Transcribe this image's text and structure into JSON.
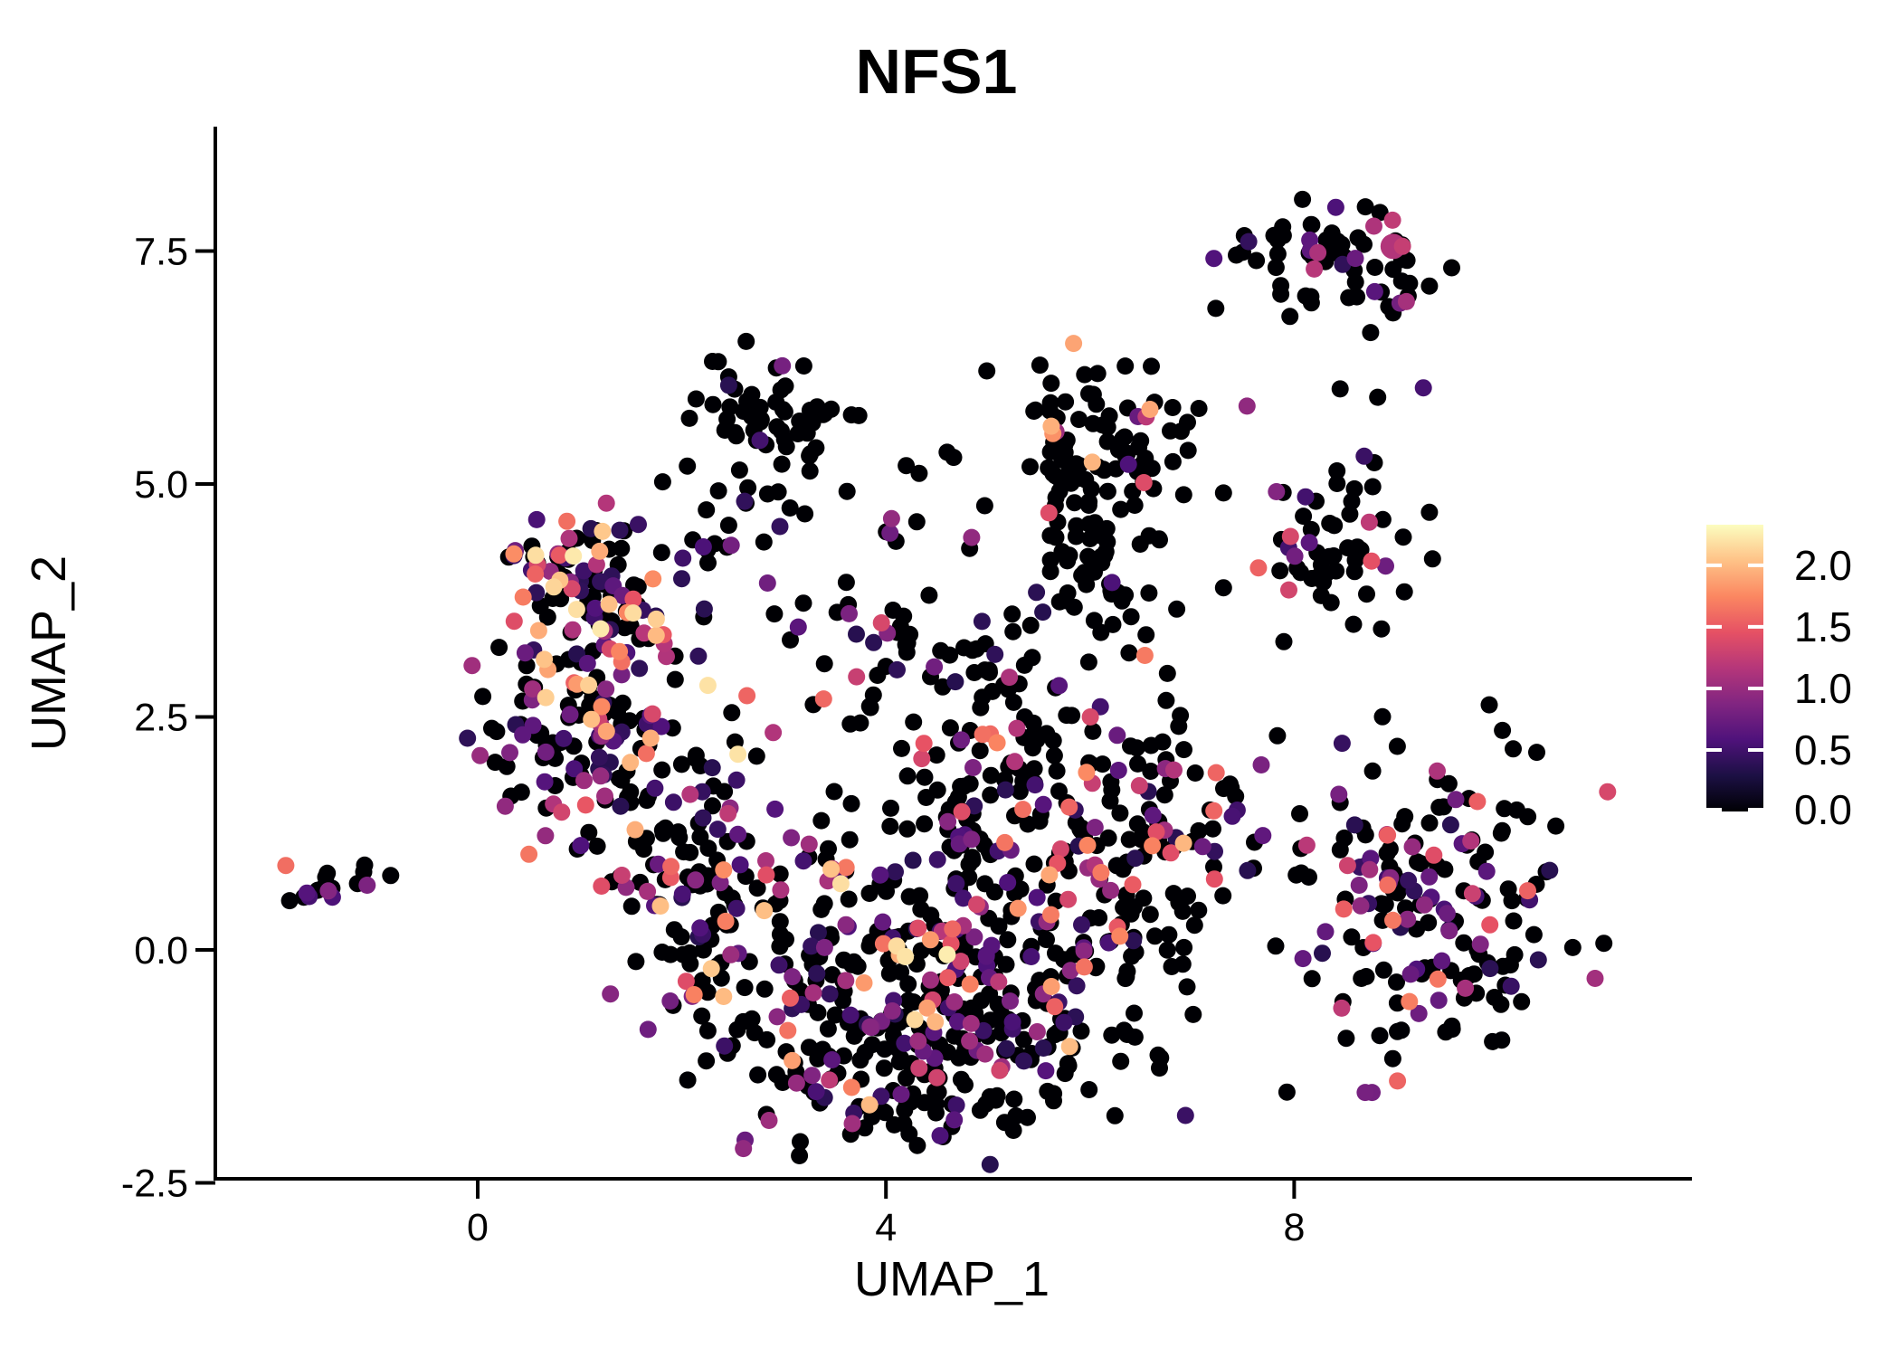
{
  "figure": {
    "background": "#FFFFFF",
    "text_color": "#000000"
  },
  "chart_data": {
    "type": "scatter",
    "title": "NFS1",
    "xlabel": "UMAP_1",
    "ylabel": "UMAP_2",
    "xlim": [
      -2.6,
      11.9
    ],
    "ylim": [
      -2.45,
      8.6
    ],
    "grid": false,
    "xticks": {
      "values": [
        0,
        4,
        8
      ],
      "labels": [
        "0",
        "4",
        "8"
      ]
    },
    "yticks": {
      "values": [
        -2.5,
        0.0,
        2.5,
        5.0,
        7.5
      ],
      "labels": [
        "-2.5",
        "0.0",
        "2.5",
        "5.0",
        "7.5"
      ]
    },
    "point_radius": 9.5,
    "points_seed": 7,
    "colorbar": {
      "title": "",
      "position": "right",
      "vmin": 0.0,
      "vmax": 2.33,
      "tick_values": [
        2.0,
        1.5,
        1.0,
        0.5,
        0.0
      ],
      "tick_labels": [
        "2.0",
        "1.5",
        "1.0",
        "0.5",
        "0.0"
      ],
      "palette_name": "magma",
      "palette_stops": [
        "#000004",
        "#1C1044",
        "#4F127B",
        "#812581",
        "#B5367A",
        "#E65164",
        "#FB8761",
        "#FEC287",
        "#FCFDBF"
      ]
    },
    "clusters": [
      {
        "name": "far-left-core",
        "n": 13,
        "cx": -1.62,
        "cy": 0.72,
        "sx": 0.17,
        "sy": 0.12,
        "frac": 0.4,
        "vmin": 0.5,
        "vmax": 1.8,
        "bias": 1.2
      },
      {
        "name": "far-left-pair",
        "n": 3,
        "cx": -1.12,
        "cy": 0.85,
        "sx": 0.08,
        "sy": 0.06,
        "frac": 0.35,
        "vmin": 0.6,
        "vmax": 1.0,
        "bias": 1.5
      },
      {
        "name": "far-left-single",
        "n": 1,
        "cx": -0.82,
        "cy": 0.82,
        "sx": 0.04,
        "sy": 0.03,
        "frac": 0.0,
        "vmin": 0.35,
        "vmax": 1.0,
        "bias": 1.6
      },
      {
        "name": "upper-left-top",
        "n": 95,
        "cx": 1.05,
        "cy": 4.0,
        "sx": 0.45,
        "sy": 0.4,
        "frac": 0.55,
        "vmin": 0.35,
        "vmax": 2.25,
        "bias": 1.5
      },
      {
        "name": "upper-left-mid",
        "n": 85,
        "cx": 1.2,
        "cy": 2.95,
        "sx": 0.5,
        "sy": 0.5,
        "frac": 0.5,
        "vmin": 0.35,
        "vmax": 2.25,
        "bias": 1.5
      },
      {
        "name": "upper-left-low",
        "n": 60,
        "cx": 0.85,
        "cy": 1.95,
        "sx": 0.45,
        "sy": 0.42,
        "frac": 0.45,
        "vmin": 0.35,
        "vmax": 2.0,
        "bias": 1.6
      },
      {
        "name": "left-bridge",
        "n": 50,
        "cx": 1.95,
        "cy": 1.2,
        "sx": 0.42,
        "sy": 0.55,
        "frac": 0.45,
        "vmin": 0.35,
        "vmax": 2.0,
        "bias": 1.6
      },
      {
        "name": "top-center-black",
        "n": 55,
        "cx": 2.85,
        "cy": 5.75,
        "sx": 0.34,
        "sy": 0.3,
        "frac": 0.03,
        "vmin": 0.35,
        "vmax": 1.0,
        "bias": 1.6
      },
      {
        "name": "top-center-trail",
        "n": 14,
        "cx": 2.75,
        "cy": 4.95,
        "sx": 0.55,
        "sy": 0.22,
        "frac": 0.08,
        "vmin": 0.35,
        "vmax": 1.0,
        "bias": 1.6
      },
      {
        "name": "mid-band-pairs",
        "n": 8,
        "cx": 2.3,
        "cy": 4.45,
        "sx": 0.3,
        "sy": 0.15,
        "frac": 0.4,
        "vmin": 0.4,
        "vmax": 1.2,
        "bias": 1.5
      },
      {
        "name": "purple-trio",
        "n": 6,
        "cx": 4.35,
        "cy": 4.5,
        "sx": 0.22,
        "sy": 0.12,
        "frac": 0.7,
        "vmin": 0.6,
        "vmax": 1.3,
        "bias": 1.2
      },
      {
        "name": "sparse-five-line",
        "n": 4,
        "cx": 4.25,
        "cy": 5.2,
        "sx": 0.35,
        "sy": 0.08,
        "frac": 0.0,
        "vmin": 0.35,
        "vmax": 1.0,
        "bias": 1.6
      },
      {
        "name": "mid-top-cluster",
        "n": 75,
        "cx": 6.1,
        "cy": 5.5,
        "sx": 0.45,
        "sy": 0.4,
        "frac": 0.06,
        "vmin": 0.5,
        "vmax": 2.0,
        "bias": 0.8
      },
      {
        "name": "mid-black-cluster",
        "n": 60,
        "cx": 6.15,
        "cy": 4.3,
        "sx": 0.35,
        "sy": 0.55,
        "frac": 0.08,
        "vmin": 0.35,
        "vmax": 1.5,
        "bias": 1.4
      },
      {
        "name": "mid-bridge",
        "n": 30,
        "cx": 5.3,
        "cy": 3.0,
        "sx": 0.5,
        "sy": 0.4,
        "frac": 0.15,
        "vmin": 0.35,
        "vmax": 1.4,
        "bias": 1.5
      },
      {
        "name": "center-bridge",
        "n": 45,
        "cx": 4.0,
        "cy": 3.15,
        "sx": 0.8,
        "sy": 0.55,
        "frac": 0.3,
        "vmin": 0.35,
        "vmax": 1.6,
        "bias": 1.5
      },
      {
        "name": "top-right",
        "n": 70,
        "cx": 8.35,
        "cy": 7.5,
        "sx": 0.5,
        "sy": 0.27,
        "frac": 0.18,
        "vmin": 0.4,
        "vmax": 1.6,
        "bias": 1.4
      },
      {
        "name": "top-right-tail",
        "n": 5,
        "cx": 8.85,
        "cy": 6.95,
        "sx": 0.15,
        "sy": 0.15,
        "frac": 0.5,
        "vmin": 0.6,
        "vmax": 1.3,
        "bias": 1.2
      },
      {
        "name": "top-right-sparse",
        "n": 4,
        "cx": 8.6,
        "cy": 5.95,
        "sx": 0.5,
        "sy": 0.12,
        "frac": 0.15,
        "vmin": 0.35,
        "vmax": 1.0,
        "bias": 1.6
      },
      {
        "name": "right-mid",
        "n": 55,
        "cx": 8.4,
        "cy": 4.4,
        "sx": 0.42,
        "sy": 0.42,
        "frac": 0.22,
        "vmin": 0.35,
        "vmax": 1.6,
        "bias": 1.5
      },
      {
        "name": "bottom-right",
        "n": 185,
        "cx": 9.35,
        "cy": 0.55,
        "sx": 0.72,
        "sy": 0.8,
        "frac": 0.3,
        "vmin": 0.35,
        "vmax": 1.7,
        "bias": 1.6
      },
      {
        "name": "central-1",
        "n": 110,
        "cx": 2.5,
        "cy": 0.4,
        "sx": 0.55,
        "sy": 0.85,
        "frac": 0.38,
        "vmin": 0.35,
        "vmax": 2.2,
        "bias": 1.7
      },
      {
        "name": "central-2",
        "n": 115,
        "cx": 3.6,
        "cy": -0.6,
        "sx": 0.7,
        "sy": 0.7,
        "frac": 0.33,
        "vmin": 0.35,
        "vmax": 2.2,
        "bias": 1.7
      },
      {
        "name": "central-3",
        "n": 125,
        "cx": 5.0,
        "cy": -0.9,
        "sx": 0.75,
        "sy": 0.55,
        "frac": 0.33,
        "vmin": 0.35,
        "vmax": 2.2,
        "bias": 1.7
      },
      {
        "name": "central-4",
        "n": 105,
        "cx": 4.5,
        "cy": 0.6,
        "sx": 0.75,
        "sy": 0.7,
        "frac": 0.35,
        "vmin": 0.35,
        "vmax": 2.2,
        "bias": 1.7
      },
      {
        "name": "central-5",
        "n": 105,
        "cx": 6.0,
        "cy": 0.3,
        "sx": 0.65,
        "sy": 0.8,
        "frac": 0.3,
        "vmin": 0.35,
        "vmax": 2.0,
        "bias": 1.7
      },
      {
        "name": "central-6",
        "n": 65,
        "cx": 6.7,
        "cy": 1.6,
        "sx": 0.5,
        "sy": 0.6,
        "frac": 0.28,
        "vmin": 0.35,
        "vmax": 1.8,
        "bias": 1.6
      },
      {
        "name": "central-7",
        "n": 65,
        "cx": 5.3,
        "cy": 1.9,
        "sx": 0.65,
        "sy": 0.5,
        "frac": 0.3,
        "vmin": 0.35,
        "vmax": 2.0,
        "bias": 1.6
      },
      {
        "name": "bottom-tail",
        "n": 45,
        "cx": 4.3,
        "cy": -1.5,
        "sx": 0.7,
        "sy": 0.28,
        "frac": 0.25,
        "vmin": 0.35,
        "vmax": 1.6,
        "bias": 1.6
      }
    ],
    "extra_points": [
      {
        "x": 8.97,
        "y": 7.55,
        "v": 1.15,
        "r": 14
      },
      {
        "x": 5.62,
        "y": 5.62,
        "v": 1.95,
        "r": 9.5
      },
      {
        "x": 6.55,
        "y": 5.72,
        "v": 1.2,
        "r": 9.5
      },
      {
        "x": 7.65,
        "y": 4.1,
        "v": 1.55,
        "r": 9.5
      },
      {
        "x": 4.6,
        "y": -0.05,
        "v": 2.25,
        "r": 9.5
      },
      {
        "x": 2.55,
        "y": 2.1,
        "v": 2.2,
        "r": 9.5
      },
      {
        "x": 1.75,
        "y": 3.55,
        "v": 2.1,
        "r": 9.5
      }
    ]
  }
}
